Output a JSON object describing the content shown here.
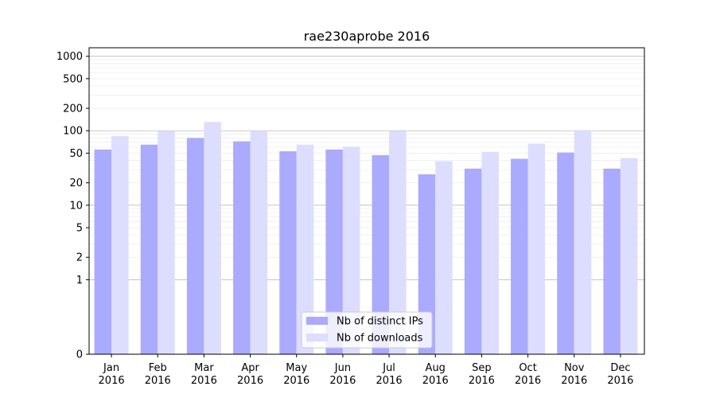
{
  "chart_data": {
    "type": "bar",
    "title": "rae230aprobe 2016",
    "scale": "symlog",
    "categories": [
      [
        "Jan",
        "2016"
      ],
      [
        "Feb",
        "2016"
      ],
      [
        "Mar",
        "2016"
      ],
      [
        "Apr",
        "2016"
      ],
      [
        "May",
        "2016"
      ],
      [
        "Jun",
        "2016"
      ],
      [
        "Jul",
        "2016"
      ],
      [
        "Aug",
        "2016"
      ],
      [
        "Sep",
        "2016"
      ],
      [
        "Oct",
        "2016"
      ],
      [
        "Nov",
        "2016"
      ],
      [
        "Dec",
        "2016"
      ]
    ],
    "series": [
      {
        "name": "Nb of distinct IPs",
        "color": "#aaaaff",
        "values": [
          56,
          65,
          80,
          72,
          53,
          56,
          47,
          26,
          31,
          42,
          51,
          31
        ]
      },
      {
        "name": "Nb of downloads",
        "color": "#ddddff",
        "values": [
          85,
          100,
          131,
          100,
          65,
          61,
          99,
          39,
          52,
          67,
          102,
          43
        ]
      }
    ],
    "yticks": [
      0,
      1,
      2,
      5,
      10,
      20,
      50,
      100,
      200,
      500,
      1000
    ],
    "ylim": [
      0,
      1300
    ],
    "grid": true,
    "legend_position": "bottom-center"
  }
}
